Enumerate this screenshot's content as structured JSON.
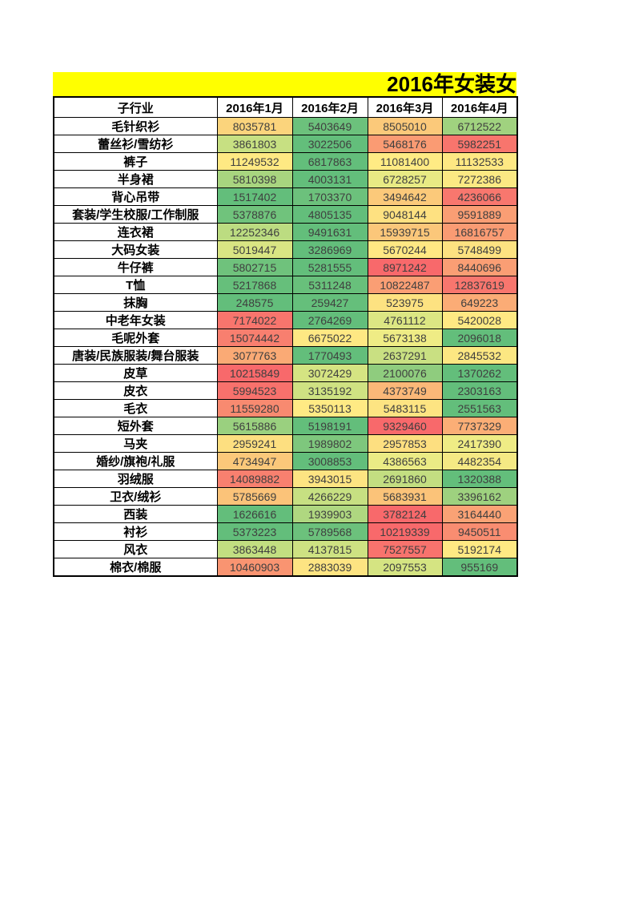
{
  "colors": {
    "title_bg": "#FFFF00",
    "grid_border": "#000000",
    "number_text": "#3F3F3F",
    "label_text": "#000000",
    "scale_min_green": "#63BE7B",
    "scale_mid_yellow": "#FFEB84",
    "scale_max_red": "#F8696B"
  },
  "title": {
    "text": "2016年女装女"
  },
  "table": {
    "columns": [
      "子行业",
      "2016年1月",
      "2016年2月",
      "2016年3月",
      "2016年4月"
    ],
    "rows": [
      {
        "label": "毛针织衫",
        "values": [
          "8035781",
          "5403649",
          "8505010",
          "6712522"
        ],
        "colors": [
          "#FBD47C",
          "#6CC17C",
          "#FBC97A",
          "#A0D27F"
        ]
      },
      {
        "label": "蕾丝衫/雪纺衫",
        "values": [
          "3861803",
          "3022506",
          "5468176",
          "5982251"
        ],
        "colors": [
          "#C7E082",
          "#63BE7B",
          "#FA9B73",
          "#F8756D"
        ]
      },
      {
        "label": "裤子",
        "values": [
          "11249532",
          "6817863",
          "11081400",
          "11132533"
        ],
        "colors": [
          "#FEE983",
          "#63BE7B",
          "#FFEB84",
          "#FEE883"
        ]
      },
      {
        "label": "半身裙",
        "values": [
          "5810398",
          "4003131",
          "6728257",
          "7272386"
        ],
        "colors": [
          "#A8D57F",
          "#63BE7B",
          "#E8EA84",
          "#FBE983"
        ]
      },
      {
        "label": "背心吊带",
        "values": [
          "1517402",
          "1703370",
          "3494642",
          "4236066"
        ],
        "colors": [
          "#63BE7B",
          "#6CC17C",
          "#FBC97A",
          "#F8776E"
        ]
      },
      {
        "label": "套装/学生校服/工作制服",
        "values": [
          "5378876",
          "4805135",
          "9048144",
          "9591889"
        ],
        "colors": [
          "#70C37C",
          "#63BE7B",
          "#FEE181",
          "#FA9E74"
        ]
      },
      {
        "label": "连衣裙",
        "values": [
          "12252346",
          "9491631",
          "15939715",
          "16816757"
        ],
        "colors": [
          "#BCDC81",
          "#63BE7B",
          "#FBC77A",
          "#FA9B73"
        ]
      },
      {
        "label": "大码女装",
        "values": [
          "5019447",
          "3286969",
          "5670244",
          "5748499"
        ],
        "colors": [
          "#D9E583",
          "#63BE7B",
          "#FFE883",
          "#FDE281"
        ]
      },
      {
        "label": "牛仔裤",
        "values": [
          "5802715",
          "5281555",
          "8971242",
          "8440696"
        ],
        "colors": [
          "#6FC27C",
          "#63BE7B",
          "#F8696B",
          "#FA9E74"
        ]
      },
      {
        "label": "T恤",
        "values": [
          "5217868",
          "5311248",
          "10822487",
          "12837619"
        ],
        "colors": [
          "#66BF7B",
          "#68C07B",
          "#FA9E74",
          "#F8766E"
        ]
      },
      {
        "label": "抹胸",
        "values": [
          "248575",
          "259427",
          "523975",
          "649223"
        ],
        "colors": [
          "#63BE7B",
          "#65BF7B",
          "#FDE281",
          "#FBAC76"
        ]
      },
      {
        "label": "中老年女装",
        "values": [
          "7174022",
          "2764269",
          "4761112",
          "5420028"
        ],
        "colors": [
          "#F8756D",
          "#63BE7B",
          "#DCE683",
          "#FFE983"
        ]
      },
      {
        "label": "毛呢外套",
        "values": [
          "15074442",
          "6675022",
          "5673138",
          "2096018"
        ],
        "colors": [
          "#F87F6F",
          "#FEE883",
          "#EFEC85",
          "#63BE7B"
        ]
      },
      {
        "label": "唐装/民族服装/舞台服装",
        "values": [
          "3077763",
          "1770493",
          "2637291",
          "2845532"
        ],
        "colors": [
          "#FAAA75",
          "#63BE7B",
          "#C9E082",
          "#FCE782"
        ]
      },
      {
        "label": "皮草",
        "values": [
          "10215849",
          "3072429",
          "2100076",
          "1370262"
        ],
        "colors": [
          "#F8696B",
          "#D5E482",
          "#8FCC7E",
          "#63BE7B"
        ]
      },
      {
        "label": "皮衣",
        "values": [
          "5994523",
          "3135192",
          "4373749",
          "2303163"
        ],
        "colors": [
          "#F8716C",
          "#CFE282",
          "#FBB878",
          "#63BE7B"
        ]
      },
      {
        "label": "毛衣",
        "values": [
          "11559280",
          "5350113",
          "5483115",
          "2551563"
        ],
        "colors": [
          "#F88A70",
          "#FFEA84",
          "#FDE482",
          "#63BE7B"
        ]
      },
      {
        "label": "短外套",
        "values": [
          "5615886",
          "5198191",
          "9329460",
          "7737329"
        ],
        "colors": [
          "#9AD07F",
          "#63BE7B",
          "#F8696B",
          "#FBAE76"
        ]
      },
      {
        "label": "马夹",
        "values": [
          "2959241",
          "1989802",
          "2957853",
          "2417390"
        ],
        "colors": [
          "#FDDF80",
          "#7EC77D",
          "#FDDF80",
          "#EFEC85"
        ]
      },
      {
        "label": "婚纱/旗袍/礼服",
        "values": [
          "4734947",
          "3008853",
          "4386563",
          "4482354"
        ],
        "colors": [
          "#FBC87A",
          "#63BE7B",
          "#EBEB85",
          "#F5E984"
        ]
      },
      {
        "label": "羽绒服",
        "values": [
          "14089882",
          "3943015",
          "2691860",
          "1320388"
        ],
        "colors": [
          "#F8806F",
          "#FDE482",
          "#C3DE81",
          "#63BE7B"
        ]
      },
      {
        "label": "卫衣/绒衫",
        "values": [
          "5785669",
          "4266229",
          "5683931",
          "3396162"
        ],
        "colors": [
          "#FBC379",
          "#C7E082",
          "#FBC379",
          "#9ED17F"
        ]
      },
      {
        "label": "西装",
        "values": [
          "1626616",
          "1939903",
          "3782124",
          "3164440"
        ],
        "colors": [
          "#63BE7B",
          "#AFD780",
          "#F8696B",
          "#FAA275"
        ]
      },
      {
        "label": "衬衫",
        "values": [
          "5373223",
          "5789568",
          "10219339",
          "9450511"
        ],
        "colors": [
          "#63BE7B",
          "#6CC17C",
          "#F8696B",
          "#F98D71"
        ]
      },
      {
        "label": "风衣",
        "values": [
          "3863448",
          "4137815",
          "7527557",
          "5192174"
        ],
        "colors": [
          "#C2DE81",
          "#CEE282",
          "#F8736D",
          "#FFE983"
        ]
      },
      {
        "label": "棉衣/棉服",
        "values": [
          "10460903",
          "2883039",
          "2097553",
          "955169"
        ],
        "colors": [
          "#F99471",
          "#FDE482",
          "#D5E482",
          "#63BE7B"
        ]
      }
    ]
  }
}
